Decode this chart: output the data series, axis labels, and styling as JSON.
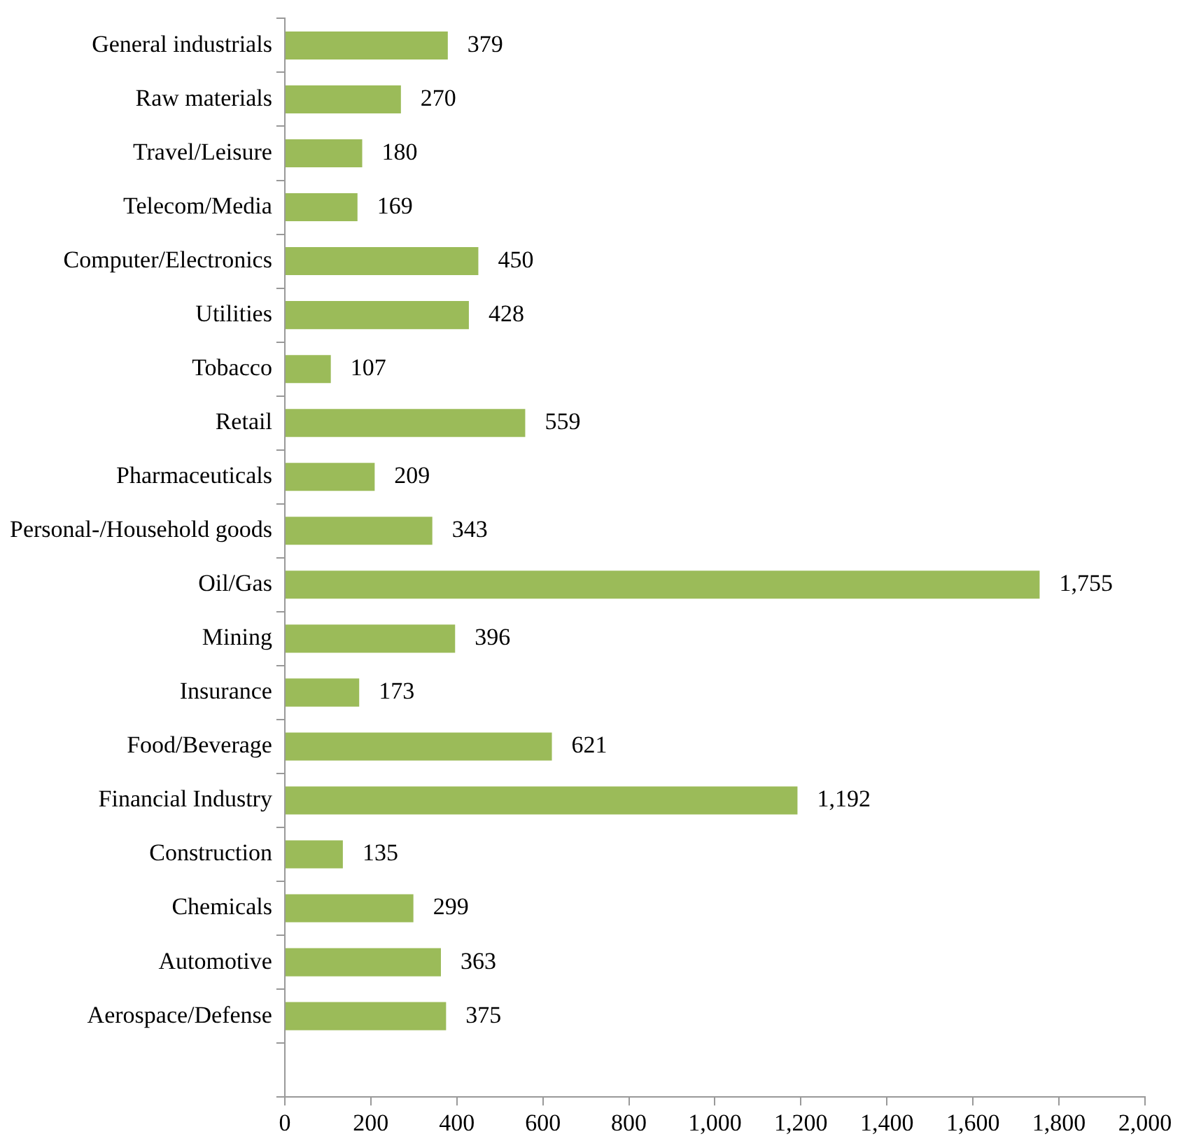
{
  "chart_data": {
    "type": "bar",
    "orientation": "horizontal",
    "color": "#9bbb59",
    "categories": [
      "General industrials",
      "Raw materials",
      "Travel/Leisure",
      "Telecom/Media",
      "Computer/Electronics",
      "Utilities",
      "Tobacco",
      "Retail",
      "Pharmaceuticals",
      "Personal-/Household goods",
      "Oil/Gas",
      "Mining",
      "Insurance",
      "Food/Beverage",
      "Financial Industry",
      "Construction",
      "Chemicals",
      "Automotive",
      "Aerospace/Defense",
      null
    ],
    "values": [
      379,
      270,
      180,
      169,
      450,
      428,
      107,
      559,
      209,
      343,
      1755,
      396,
      173,
      621,
      1192,
      135,
      299,
      363,
      375,
      null
    ],
    "value_labels": [
      "379",
      "270",
      "180",
      "169",
      "450",
      "428",
      "107",
      "559",
      "209",
      "343",
      "1,755",
      "396",
      "173",
      "621",
      "1,192",
      "135",
      "299",
      "363",
      "375",
      null
    ],
    "xlim": [
      0,
      2000
    ],
    "xticks": [
      0,
      200,
      400,
      600,
      800,
      {
        "value": 1000,
        "label": "1,000"
      },
      {
        "value": 1200,
        "label": "1,200"
      },
      {
        "value": 1400,
        "label": "1,400"
      },
      {
        "value": 1600,
        "label": "1,600"
      },
      {
        "value": 1800,
        "label": "1,800"
      },
      {
        "value": 2000,
        "label": "2,000"
      }
    ],
    "grid": false,
    "legend": false
  }
}
